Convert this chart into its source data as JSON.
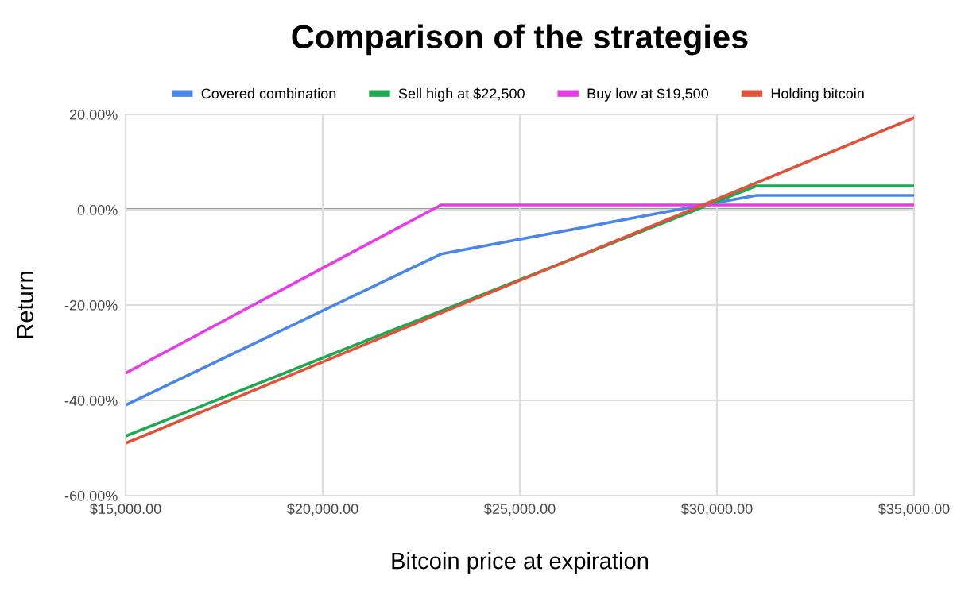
{
  "chart_data": {
    "type": "line",
    "title": "Comparison of the strategies",
    "xlabel": "Bitcoin price at expiration",
    "ylabel": "Return",
    "xlim": [
      15000,
      35000
    ],
    "ylim": [
      -60,
      20
    ],
    "xticks": [
      {
        "value": 15000,
        "label": "$15,000.00"
      },
      {
        "value": 20000,
        "label": "$20,000.00"
      },
      {
        "value": 25000,
        "label": "$25,000.00"
      },
      {
        "value": 30000,
        "label": "$30,000.00"
      },
      {
        "value": 35000,
        "label": "$35,000.00"
      }
    ],
    "yticks": [
      {
        "value": -60,
        "label": "-60.00%"
      },
      {
        "value": -40,
        "label": "-40.00%"
      },
      {
        "value": -20,
        "label": "-20.00%"
      },
      {
        "value": 0,
        "label": "0.00%"
      },
      {
        "value": 20,
        "label": "20.00%"
      }
    ],
    "grid": true,
    "legend": "top",
    "marker": "none",
    "line_style": "solid",
    "ref_lines": [
      {
        "axis": "y",
        "value": 0,
        "color": "#333333"
      }
    ],
    "series": [
      {
        "name": "Covered combination",
        "color": "#4a86e8",
        "x": [
          15000,
          23000,
          29000,
          31000,
          35000
        ],
        "values": [
          -41,
          -9.3,
          0,
          3,
          3
        ]
      },
      {
        "name": "Sell high at $22,500",
        "color": "#1fa84f",
        "x": [
          15000,
          31000,
          35000
        ],
        "values": [
          -47.5,
          5,
          5
        ]
      },
      {
        "name": "Buy low at $19,500",
        "color": "#e63ce6",
        "x": [
          15000,
          23000,
          35000
        ],
        "values": [
          -34.3,
          1,
          1
        ]
      },
      {
        "name": "Holding bitcoin",
        "color": "#e0533b",
        "x": [
          15000,
          35000
        ],
        "values": [
          -49,
          19.3
        ]
      }
    ]
  }
}
